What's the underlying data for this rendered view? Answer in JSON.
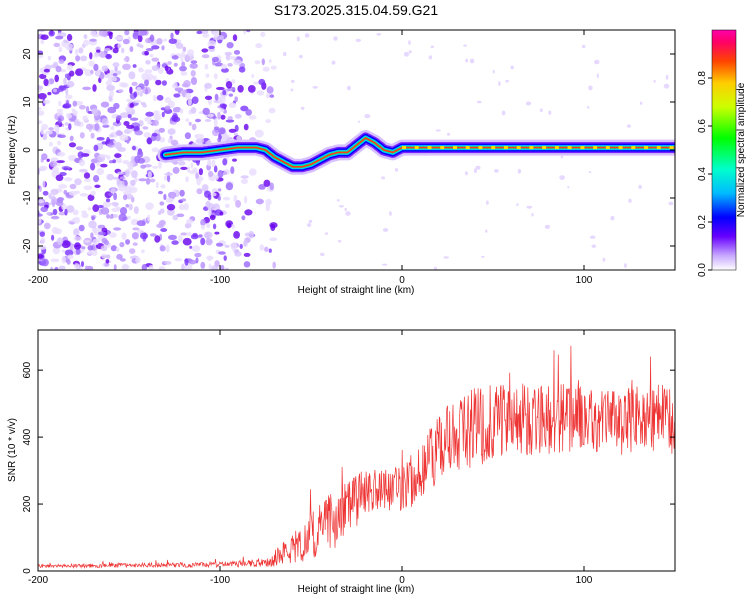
{
  "title": "S173.2025.315.04.59.G21",
  "chart_data": [
    {
      "type": "heatmap",
      "xlabel": "Height of straight line (km)",
      "ylabel": "Frequency (Hz)",
      "xlim": [
        -200,
        150
      ],
      "ylim": [
        -25,
        25
      ],
      "xticks": [
        -200,
        -100,
        0,
        100
      ],
      "yticks": [
        -20,
        -10,
        0,
        10,
        20
      ],
      "ridge_x": [
        -130,
        -120,
        -110,
        -100,
        -90,
        -80,
        -75,
        -70,
        -65,
        -60,
        -55,
        -50,
        -45,
        -40,
        -35,
        -30,
        -25,
        -20,
        -15,
        -10,
        -5,
        0,
        150
      ],
      "ridge_y": [
        -1,
        -0.5,
        -0.5,
        0,
        0.5,
        0.5,
        0,
        -1.5,
        -2.5,
        -3.5,
        -3.5,
        -3,
        -2,
        -1,
        -0.5,
        -0.5,
        1,
        2.5,
        1.5,
        0,
        -0.5,
        0.5,
        0.5
      ],
      "colorbar": {
        "label": "Normalized spectral amplitude",
        "range": [
          0,
          1
        ],
        "ticks": [
          "0.0",
          "0.2",
          "0.4",
          "0.6",
          "0.8"
        ],
        "tick_values": [
          0,
          0.2,
          0.4,
          0.6,
          0.8
        ]
      }
    },
    {
      "type": "line",
      "xlabel": "Height of straight line (km)",
      "ylabel": "SNR (10 * v/v)",
      "xlim": [
        -200,
        150
      ],
      "ylim": [
        0,
        720
      ],
      "xticks": [
        -200,
        -100,
        0,
        100
      ],
      "yticks": [
        0,
        200,
        400,
        600
      ],
      "color": "#ee3333",
      "envelope_x": [
        -200,
        -100,
        -80,
        -70,
        -60,
        -50,
        -40,
        -30,
        -20,
        -10,
        0,
        10,
        20,
        30,
        40,
        50,
        60,
        80,
        100,
        120,
        150
      ],
      "envelope_mean": [
        15,
        20,
        25,
        40,
        70,
        110,
        150,
        200,
        240,
        250,
        250,
        300,
        380,
        420,
        440,
        450,
        460,
        470,
        460,
        455,
        470
      ],
      "envelope_amp": [
        5,
        8,
        12,
        25,
        45,
        70,
        90,
        90,
        70,
        60,
        70,
        90,
        100,
        110,
        120,
        120,
        110,
        110,
        100,
        100,
        110
      ]
    }
  ]
}
